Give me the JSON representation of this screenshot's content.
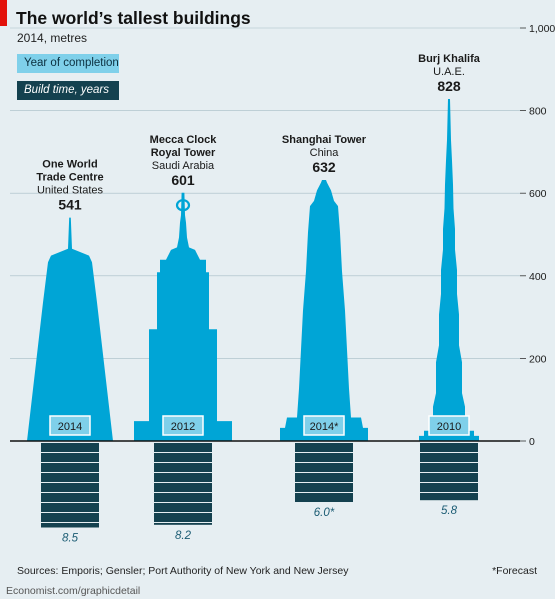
{
  "title": "The world’s tallest buildings",
  "subtitle": "2014, metres",
  "legend": {
    "year": "Year of completion",
    "build": "Build time, years"
  },
  "colors": {
    "bar": "#00a5d6",
    "year_box": "#7fd0ea",
    "build": "#14414f",
    "background": "#e6eef2",
    "grid": "#a6bcc6",
    "accent": "#e3120b"
  },
  "chart_data": {
    "type": "bar",
    "yaxis": {
      "min": 0,
      "max": 1000,
      "ticks": [
        "0",
        "200",
        "400",
        "600",
        "800",
        "1,000"
      ],
      "grid": true,
      "position": "right"
    },
    "categories": [
      "One World Trade Centre",
      "Mecca Clock Royal Tower",
      "Shanghai Tower",
      "Burj Khalifa"
    ],
    "buildings": [
      {
        "name": "One World\nTrade Centre",
        "country": "United States",
        "height": 541,
        "height_label": "541",
        "year": "2014",
        "build_years": 8.5,
        "build_label": "8.5"
      },
      {
        "name": "Mecca Clock\nRoyal Tower",
        "country": "Saudi Arabia",
        "height": 601,
        "height_label": "601",
        "year": "2012",
        "build_years": 8.2,
        "build_label": "8.2"
      },
      {
        "name": "Shanghai  Tower",
        "country": "China",
        "height": 632,
        "height_label": "632",
        "year": "2014*",
        "build_years": 6.0,
        "build_label": "6.0*"
      },
      {
        "name": "Burj Khalifa",
        "country": "U.A.E.",
        "height": 828,
        "height_label": "828",
        "year": "2010",
        "build_years": 5.8,
        "build_label": "5.8"
      }
    ]
  },
  "footer": {
    "sources": "Sources: Emporis; Gensler; Port Authority of New York and New Jersey",
    "note": "*Forecast",
    "credit": "Economist.com/graphicdetail"
  }
}
